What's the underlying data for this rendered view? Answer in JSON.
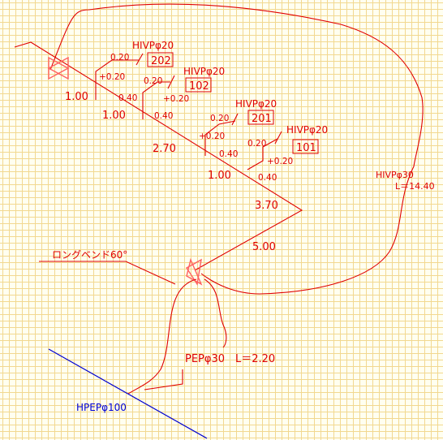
{
  "pipe_labels": {
    "main_spec": "HIVPφ30",
    "main_length": "L＝14.40",
    "drain_spec": "PEPφ30　L＝2.20",
    "sewer_spec": "HPEPφ100",
    "bend_label": "ロングベンド60°"
  },
  "branches": [
    {
      "spec": "HIVPφ20",
      "fixture": "202",
      "run": "0.20",
      "rise": "+0.20",
      "drop": "0.40"
    },
    {
      "spec": "HIVPφ20",
      "fixture": "102",
      "run": "0.20",
      "rise": "+0.20",
      "drop": "0.40"
    },
    {
      "spec": "HIVPφ20",
      "fixture": "201",
      "run": "0.20",
      "rise": "+0.20",
      "drop": "0.40"
    },
    {
      "spec": "HIVPφ20",
      "fixture": "101",
      "run": "0.20",
      "rise": "+0.20",
      "drop": "0.40"
    }
  ],
  "segments": [
    "1.00",
    "1.00",
    "2.70",
    "1.00",
    "3.70",
    "5.00"
  ]
}
